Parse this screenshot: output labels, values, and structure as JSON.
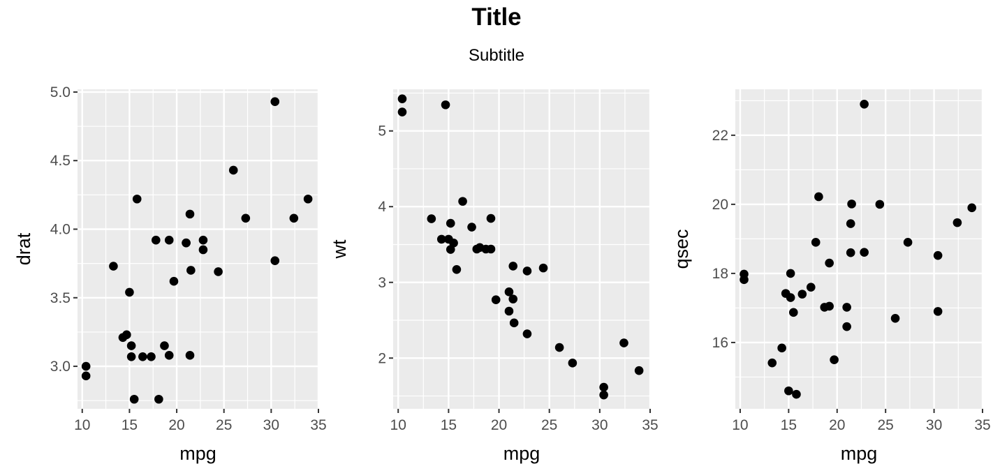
{
  "title": "Title",
  "subtitle": "Subtitle",
  "colors": {
    "panel": "#ebebeb",
    "grid": "#ffffff",
    "point": "#000000",
    "tick": "#333333"
  },
  "chart_data": [
    {
      "type": "scatter",
      "xlabel": "mpg",
      "ylabel": "drat",
      "xlim": [
        9.5,
        35.0
      ],
      "ylim": [
        2.69,
        5.02
      ],
      "xticks": [
        10,
        15,
        20,
        25,
        30,
        35
      ],
      "yticks": [
        3.0,
        3.5,
        4.0,
        4.5,
        5.0
      ],
      "ytick_labels": [
        "3.0",
        "3.5",
        "4.0",
        "4.5",
        "5.0"
      ],
      "points": [
        [
          21.0,
          3.9
        ],
        [
          21.0,
          3.9
        ],
        [
          22.8,
          3.85
        ],
        [
          21.4,
          3.08
        ],
        [
          18.7,
          3.15
        ],
        [
          18.1,
          2.76
        ],
        [
          14.3,
          3.21
        ],
        [
          24.4,
          3.69
        ],
        [
          22.8,
          3.92
        ],
        [
          19.2,
          3.92
        ],
        [
          17.8,
          3.92
        ],
        [
          16.4,
          3.07
        ],
        [
          17.3,
          3.07
        ],
        [
          15.2,
          3.07
        ],
        [
          10.4,
          2.93
        ],
        [
          10.4,
          3.0
        ],
        [
          14.7,
          3.23
        ],
        [
          32.4,
          4.08
        ],
        [
          30.4,
          4.93
        ],
        [
          33.9,
          4.22
        ],
        [
          21.5,
          3.7
        ],
        [
          15.5,
          2.76
        ],
        [
          15.2,
          3.15
        ],
        [
          13.3,
          3.73
        ],
        [
          19.2,
          3.08
        ],
        [
          27.3,
          4.08
        ],
        [
          26.0,
          4.43
        ],
        [
          30.4,
          3.77
        ],
        [
          15.8,
          4.22
        ],
        [
          19.7,
          3.62
        ],
        [
          15.0,
          3.54
        ],
        [
          21.4,
          4.11
        ]
      ]
    },
    {
      "type": "scatter",
      "xlabel": "mpg",
      "ylabel": "wt",
      "xlim": [
        9.5,
        35.0
      ],
      "ylim": [
        1.33,
        5.55
      ],
      "xticks": [
        10,
        15,
        20,
        25,
        30,
        35
      ],
      "yticks": [
        2,
        3,
        4,
        5
      ],
      "ytick_labels": [
        "2",
        "3",
        "4",
        "5"
      ],
      "points": [
        [
          21.0,
          2.62
        ],
        [
          21.0,
          2.875
        ],
        [
          22.8,
          2.32
        ],
        [
          21.4,
          3.215
        ],
        [
          18.7,
          3.44
        ],
        [
          18.1,
          3.46
        ],
        [
          14.3,
          3.57
        ],
        [
          24.4,
          3.19
        ],
        [
          22.8,
          3.15
        ],
        [
          19.2,
          3.44
        ],
        [
          17.8,
          3.44
        ],
        [
          16.4,
          4.07
        ],
        [
          17.3,
          3.73
        ],
        [
          15.2,
          3.78
        ],
        [
          10.4,
          5.25
        ],
        [
          10.4,
          5.424
        ],
        [
          14.7,
          5.345
        ],
        [
          32.4,
          2.2
        ],
        [
          30.4,
          1.615
        ],
        [
          33.9,
          1.835
        ],
        [
          21.5,
          2.465
        ],
        [
          15.5,
          3.52
        ],
        [
          15.2,
          3.435
        ],
        [
          13.3,
          3.84
        ],
        [
          19.2,
          3.845
        ],
        [
          27.3,
          1.935
        ],
        [
          26.0,
          2.14
        ],
        [
          30.4,
          1.513
        ],
        [
          15.8,
          3.17
        ],
        [
          19.7,
          2.77
        ],
        [
          15.0,
          3.57
        ],
        [
          21.4,
          2.78
        ]
      ]
    },
    {
      "type": "scatter",
      "xlabel": "mpg",
      "ylabel": "qsec",
      "xlim": [
        9.5,
        35.0
      ],
      "ylim": [
        14.08,
        23.33
      ],
      "xticks": [
        10,
        15,
        20,
        25,
        30,
        35
      ],
      "yticks": [
        16,
        18,
        20,
        22
      ],
      "ytick_labels": [
        "16",
        "18",
        "20",
        "22"
      ],
      "points": [
        [
          21.0,
          16.46
        ],
        [
          21.0,
          17.02
        ],
        [
          22.8,
          18.61
        ],
        [
          21.4,
          19.44
        ],
        [
          18.7,
          17.02
        ],
        [
          18.1,
          20.22
        ],
        [
          14.3,
          15.84
        ],
        [
          24.4,
          20.0
        ],
        [
          22.8,
          22.9
        ],
        [
          19.2,
          18.3
        ],
        [
          17.8,
          18.9
        ],
        [
          16.4,
          17.4
        ],
        [
          17.3,
          17.6
        ],
        [
          15.2,
          18.0
        ],
        [
          10.4,
          17.98
        ],
        [
          10.4,
          17.82
        ],
        [
          14.7,
          17.42
        ],
        [
          32.4,
          19.47
        ],
        [
          30.4,
          18.52
        ],
        [
          33.9,
          19.9
        ],
        [
          21.5,
          20.01
        ],
        [
          15.5,
          16.87
        ],
        [
          15.2,
          17.3
        ],
        [
          13.3,
          15.41
        ],
        [
          19.2,
          17.05
        ],
        [
          27.3,
          18.9
        ],
        [
          26.0,
          16.7
        ],
        [
          30.4,
          16.9
        ],
        [
          15.8,
          14.5
        ],
        [
          19.7,
          15.5
        ],
        [
          15.0,
          14.6
        ],
        [
          21.4,
          18.6
        ]
      ]
    }
  ]
}
